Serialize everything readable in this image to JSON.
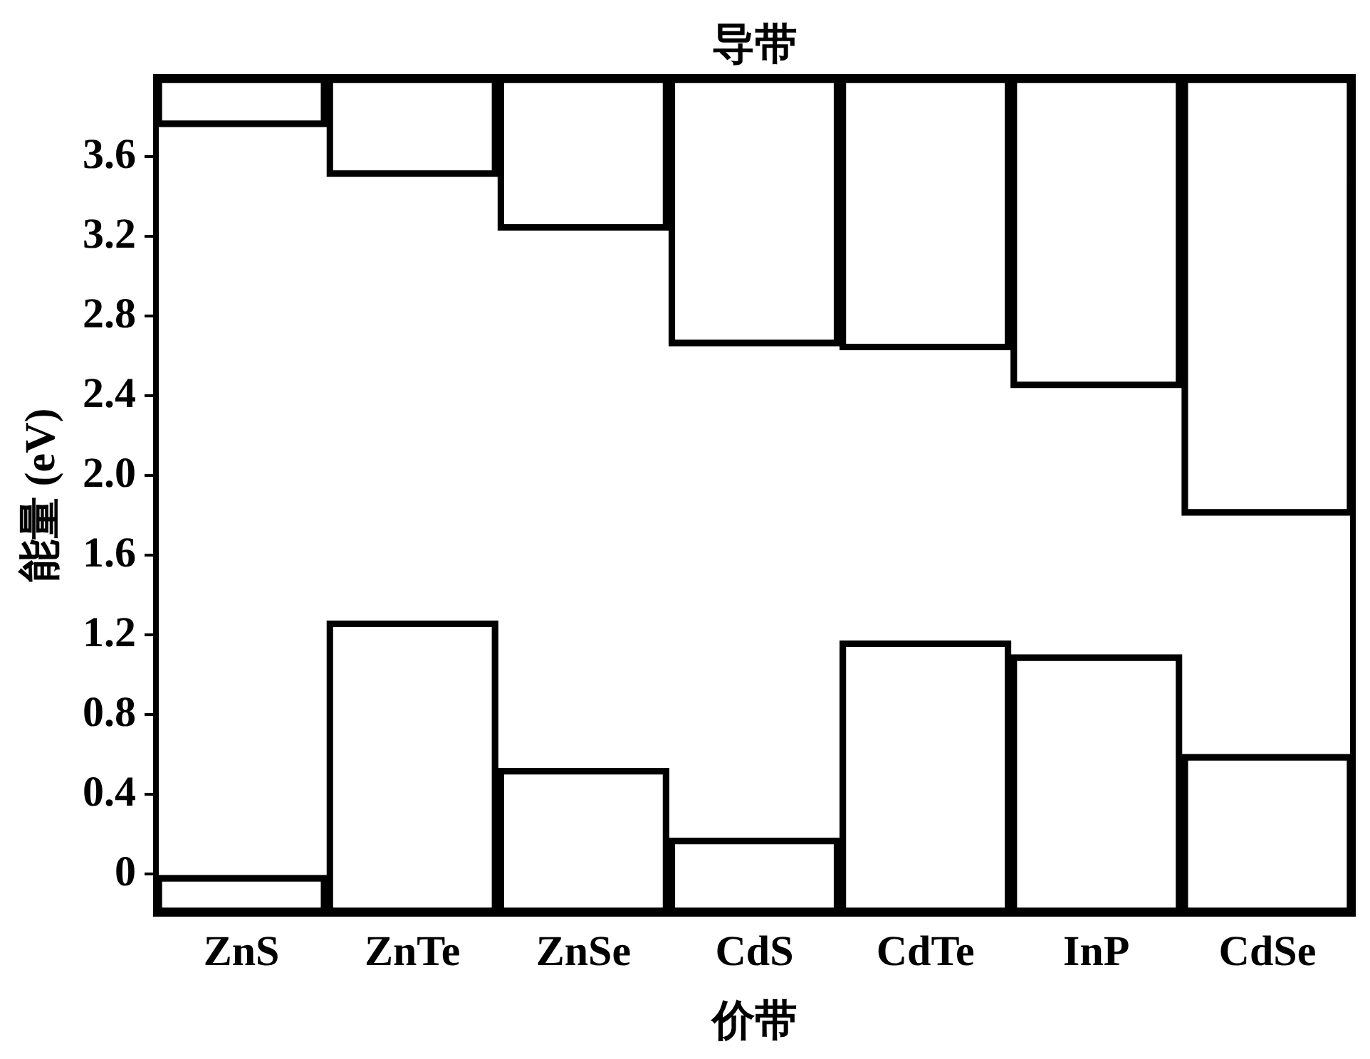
{
  "chart_data": {
    "type": "bar",
    "ylabel": "能量 (eV)",
    "categories": [
      "ZnS",
      "ZnTe",
      "ZnSe",
      "CdS",
      "CdTe",
      "InP",
      "CdSe"
    ],
    "series": [
      {
        "name": "价带",
        "color": "#000000",
        "base": [
          -0.2,
          -0.2,
          -0.2,
          -0.2,
          -0.2,
          -0.2,
          -0.2
        ],
        "values": [
          0.2,
          1.47,
          0.73,
          0.38,
          1.37,
          1.3,
          0.8
        ]
      },
      {
        "name": "导带",
        "color": "#000000",
        "base": [
          3.75,
          3.5,
          3.23,
          2.65,
          2.63,
          2.44,
          1.8
        ],
        "values": [
          0.25,
          0.5,
          0.77,
          1.35,
          1.37,
          1.56,
          2.2
        ]
      }
    ],
    "ylim": [
      -0.2,
      4.0
    ],
    "yticks": [
      0,
      {
        "value": 0.4,
        "label": "0.4"
      },
      {
        "value": 0.8,
        "label": "0.8"
      },
      {
        "value": 1.2,
        "label": "1.2"
      },
      {
        "value": 1.6,
        "label": "1.6"
      },
      {
        "value": 2,
        "label": "2.0"
      },
      {
        "value": 2.4,
        "label": "2.4"
      },
      {
        "value": 2.8,
        "label": "2.8"
      },
      {
        "value": 3.2,
        "label": "3.2"
      },
      {
        "value": 3.6,
        "label": "3.6"
      }
    ],
    "grid": false,
    "legend": false
  }
}
